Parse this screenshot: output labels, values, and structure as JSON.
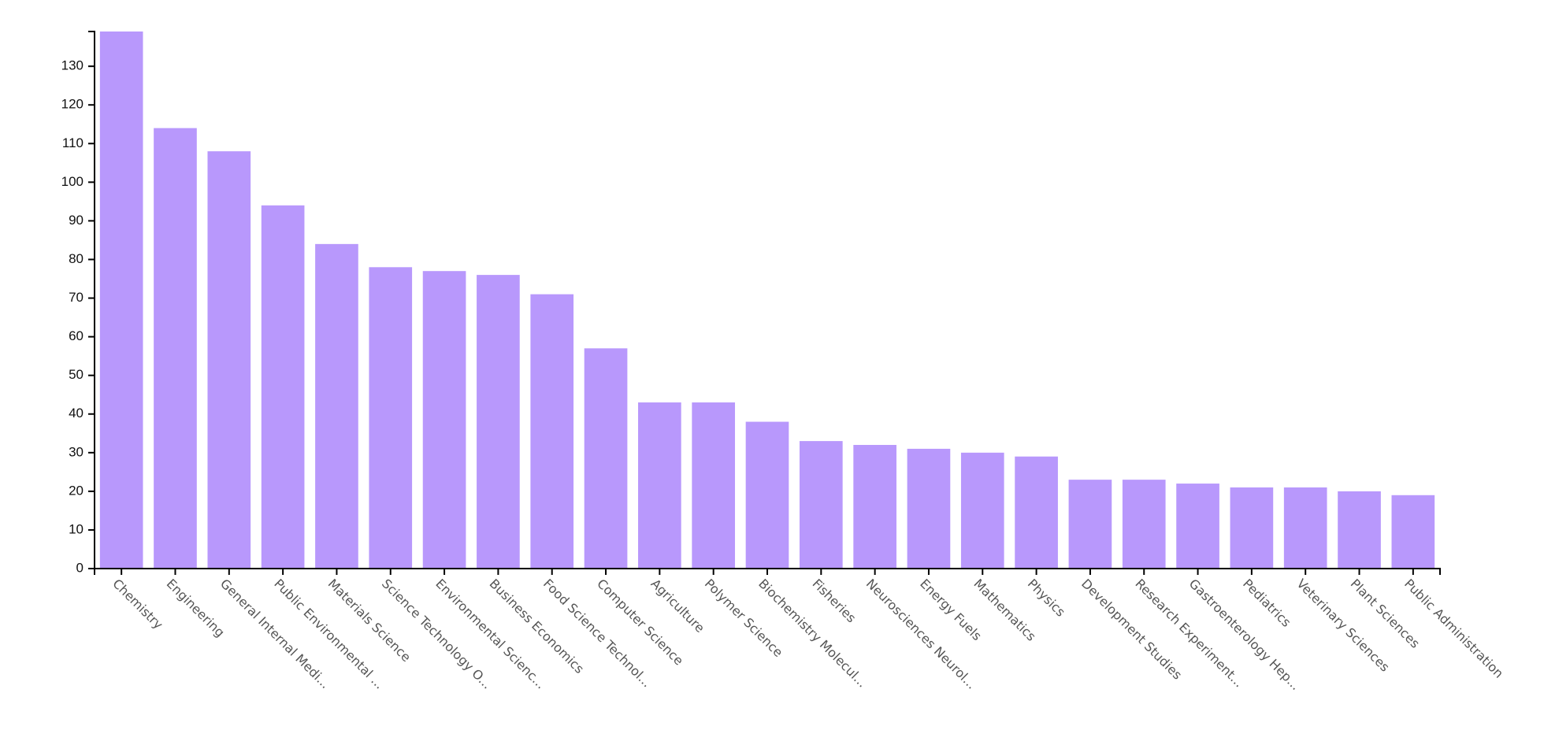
{
  "chart_data": {
    "type": "bar",
    "title": "",
    "xlabel": "",
    "ylabel": "",
    "ylim": [
      0,
      139
    ],
    "yticks": [
      0,
      10,
      20,
      30,
      40,
      50,
      60,
      70,
      80,
      90,
      100,
      110,
      120,
      130
    ],
    "grid": false,
    "legend": "none",
    "bar_color": "#b898fc",
    "categories": [
      "Chemistry",
      "Engineering",
      "General Internal Medi...",
      "Public Environmental ...",
      "Materials Science",
      "Science Technology O...",
      "Environmental Scienc...",
      "Business Economics",
      "Food Science Technol...",
      "Computer Science",
      "Agriculture",
      "Polymer Science",
      "Biochemistry Molecul...",
      "Fisheries",
      "Neurosciences Neurol...",
      "Energy Fuels",
      "Mathematics",
      "Physics",
      "Development Studies",
      "Research Experiment...",
      "Gastroenterology Hep...",
      "Pediatrics",
      "Veterinary Sciences",
      "Plant Sciences",
      "Public Administration"
    ],
    "values": [
      139,
      114,
      108,
      94,
      84,
      78,
      77,
      76,
      71,
      57,
      43,
      43,
      38,
      33,
      32,
      31,
      30,
      29,
      23,
      23,
      22,
      21,
      21,
      20,
      19
    ]
  }
}
